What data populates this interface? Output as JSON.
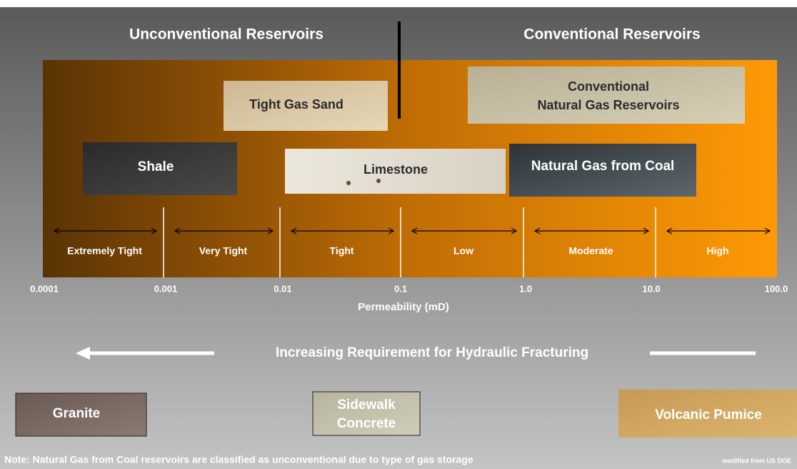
{
  "header": {
    "left": "Unconventional Reservoirs",
    "right": "Conventional Reservoirs"
  },
  "rocks": {
    "tight_gas_sand": "Tight Gas Sand",
    "conventional": [
      "Conventional",
      "Natural Gas Reservoirs"
    ],
    "shale": "Shale",
    "limestone": "Limestone",
    "coal": "Natural Gas from Coal"
  },
  "permeability_classes": [
    "Extremely Tight",
    "Very Tight",
    "Tight",
    "Low",
    "Moderate",
    "High"
  ],
  "scale_labels": [
    "0.0001",
    "0.001",
    "0.01",
    "0.1",
    "1.0",
    "10.0",
    "100.0"
  ],
  "axis_label": "Permeability (mD)",
  "fracturing": "Increasing Requirement for Hydraulic Fracturing",
  "examples": {
    "granite": "Granite",
    "concrete": [
      "Sidewalk",
      "Concrete"
    ],
    "pumice": "Volcanic Pumice"
  },
  "note": "Note:  Natural Gas from Coal reservoirs are classified as unconventional due to type of gas storage",
  "source": "modified from US DOE"
}
